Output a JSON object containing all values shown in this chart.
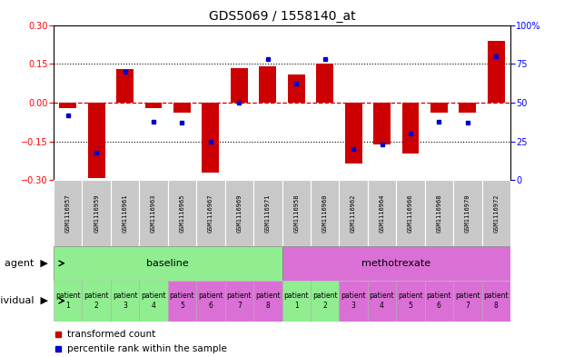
{
  "title": "GDS5069 / 1558140_at",
  "samples": [
    "GSM1116957",
    "GSM1116959",
    "GSM1116961",
    "GSM1116963",
    "GSM1116965",
    "GSM1116967",
    "GSM1116969",
    "GSM1116971",
    "GSM1116958",
    "GSM1116960",
    "GSM1116962",
    "GSM1116964",
    "GSM1116966",
    "GSM1116968",
    "GSM1116970",
    "GSM1116972"
  ],
  "transformed_count": [
    -0.02,
    -0.29,
    0.13,
    -0.02,
    -0.04,
    -0.27,
    0.135,
    0.14,
    0.11,
    0.15,
    -0.235,
    -0.16,
    -0.195,
    -0.04,
    -0.04,
    0.24
  ],
  "percentile_rank": [
    42,
    18,
    70,
    38,
    37,
    25,
    50,
    78,
    62,
    78,
    20,
    23,
    30,
    38,
    37,
    80
  ],
  "ylim": [
    -0.3,
    0.3
  ],
  "y2lim": [
    0,
    100
  ],
  "yticks": [
    -0.3,
    -0.15,
    0,
    0.15,
    0.3
  ],
  "y2ticks": [
    0,
    25,
    50,
    75,
    100
  ],
  "agent_groups": [
    {
      "label": "baseline",
      "start": 0,
      "end": 8,
      "color": "#90EE90"
    },
    {
      "label": "methotrexate",
      "start": 8,
      "end": 16,
      "color": "#DA70D6"
    }
  ],
  "individual_labels": [
    "patient\n1",
    "patient\n2",
    "patient\n3",
    "patient\n4",
    "patient\n5",
    "patient\n6",
    "patient\n7",
    "patient\n8",
    "patient\n1",
    "patient\n2",
    "patient\n3",
    "patient\n4",
    "patient\n5",
    "patient\n6",
    "patient\n7",
    "patient\n8"
  ],
  "individual_colors": [
    "#90EE90",
    "#90EE90",
    "#90EE90",
    "#90EE90",
    "#DA70D6",
    "#DA70D6",
    "#DA70D6",
    "#DA70D6",
    "#90EE90",
    "#90EE90",
    "#DA70D6",
    "#DA70D6",
    "#DA70D6",
    "#DA70D6",
    "#DA70D6",
    "#DA70D6"
  ],
  "bar_color": "#CC0000",
  "dot_color": "#0000CC",
  "zero_line_color": "#CC0000",
  "hline_color": "#000000",
  "sample_box_color": "#C8C8C8",
  "title_fontsize": 10,
  "tick_fontsize": 7,
  "label_fontsize": 8,
  "legend_fontsize": 7.5,
  "sample_fontsize": 5,
  "patient_fontsize": 5.5
}
